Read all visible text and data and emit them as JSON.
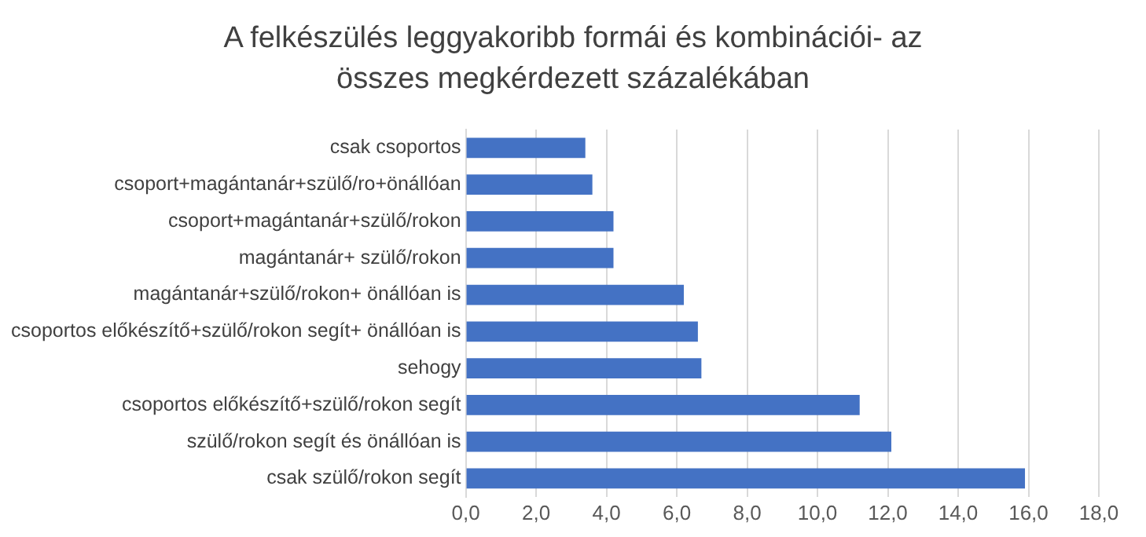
{
  "chart_data": {
    "type": "bar",
    "orientation": "horizontal",
    "title": "A felkészülés leggyakoribb formái és kombinációi- az összes megkérdezett százalékában",
    "categories": [
      "csak csoportos",
      "csoport+magántanár+szülő/ro+önállóan",
      "csoport+magántanár+szülő/rokon",
      "magántanár+ szülő/rokon",
      "magántanár+szülő/rokon+ önállóan is",
      "csoportos előkészítő+szülő/rokon segít+ önállóan is",
      "sehogy",
      "csoportos előkészítő+szülő/rokon segít",
      "szülő/rokon segít és önállóan is",
      "csak szülő/rokon segít"
    ],
    "values": [
      3.4,
      3.6,
      4.2,
      4.2,
      6.2,
      6.6,
      6.7,
      11.2,
      12.1,
      15.9
    ],
    "color": "#4472c4",
    "xlim": [
      0,
      18
    ],
    "xticks": [
      {
        "value": 0,
        "label": "0,0"
      },
      {
        "value": 2,
        "label": "2,0"
      },
      {
        "value": 4,
        "label": "4,0"
      },
      {
        "value": 6,
        "label": "6,0"
      },
      {
        "value": 8,
        "label": "8,0"
      },
      {
        "value": 10,
        "label": "10,0"
      },
      {
        "value": 12,
        "label": "12,0"
      },
      {
        "value": 14,
        "label": "14,0"
      },
      {
        "value": 16,
        "label": "16,0"
      },
      {
        "value": 18,
        "label": "18,0"
      }
    ],
    "grid": "x",
    "legend": false
  }
}
